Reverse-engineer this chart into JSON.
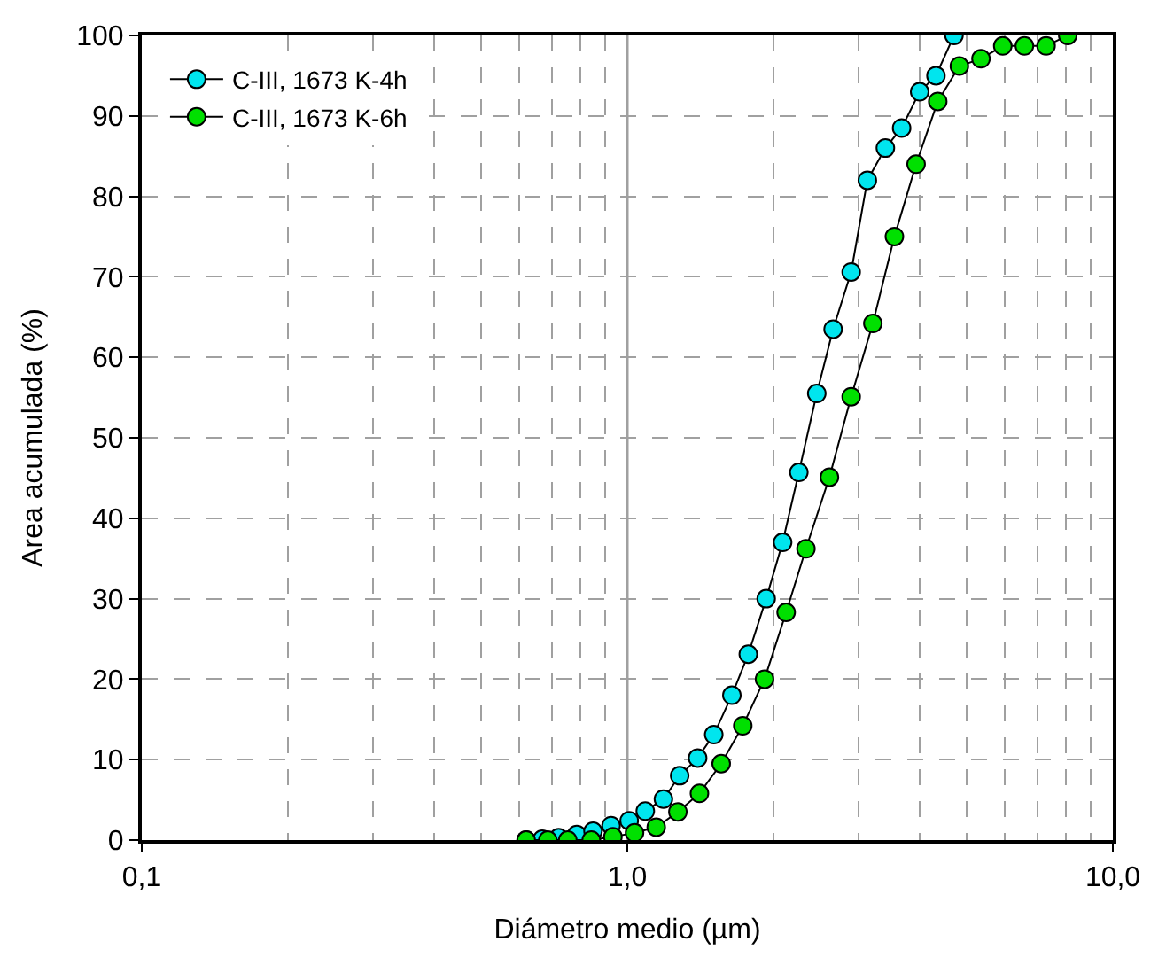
{
  "chart_data": {
    "type": "line",
    "xlabel": "Diámetro medio (µm)",
    "ylabel": "Area acumulada (%)",
    "log": "x",
    "xlim": [
      0.1,
      10
    ],
    "xticks": [
      {
        "value": 0.1,
        "label": "0,1"
      },
      {
        "value": 1,
        "label": "1,0"
      },
      {
        "value": 10,
        "label": "10,0"
      }
    ],
    "ylim": [
      0,
      100
    ],
    "yticks": [
      0,
      10,
      20,
      30,
      40,
      50,
      60,
      70,
      80,
      90,
      100
    ],
    "grid": true,
    "ref_lines": [
      {
        "axis": "x",
        "value": 1,
        "color": "#a0a0a0",
        "line_style": "solid"
      }
    ],
    "legend": "top left",
    "marker": "circle",
    "line_style": "solid",
    "series": [
      {
        "name": "C-III, 1673 K-4h",
        "color": "#00e5ee",
        "x": [
          0.619,
          0.668,
          0.722,
          0.787,
          0.85,
          0.926,
          1.009,
          1.089,
          1.187,
          1.282,
          1.396,
          1.507,
          1.642,
          1.775,
          1.932,
          2.089,
          2.256,
          2.456,
          2.654,
          2.891,
          3.122,
          3.4,
          3.673,
          4.001,
          4.322,
          4.708
        ],
        "values": [
          0,
          0.1,
          0.3,
          0.7,
          1.1,
          1.8,
          2.4,
          3.6,
          5.1,
          8,
          10.2,
          13.1,
          18,
          23.1,
          30,
          37,
          45.7,
          55.5,
          63.5,
          70.6,
          82,
          86,
          88.5,
          93,
          95,
          100
        ]
      },
      {
        "name": "C-III, 1673 K-6h",
        "color": "#00e000",
        "x": [
          0.619,
          0.686,
          0.754,
          0.843,
          0.934,
          1.035,
          1.147,
          1.271,
          1.408,
          1.561,
          1.729,
          1.917,
          2.124,
          2.333,
          2.608,
          2.891,
          3.204,
          3.549,
          3.934,
          4.359,
          4.83,
          5.351,
          5.933,
          6.575,
          7.286,
          8.074
        ],
        "values": [
          0,
          0,
          0,
          0,
          0.4,
          0.9,
          1.6,
          3.5,
          5.8,
          9.5,
          14.2,
          20,
          28.3,
          36.2,
          45.1,
          55.1,
          64.2,
          75,
          84,
          91.8,
          96.2,
          97.1,
          98.7,
          98.7,
          98.7,
          100
        ]
      }
    ]
  }
}
